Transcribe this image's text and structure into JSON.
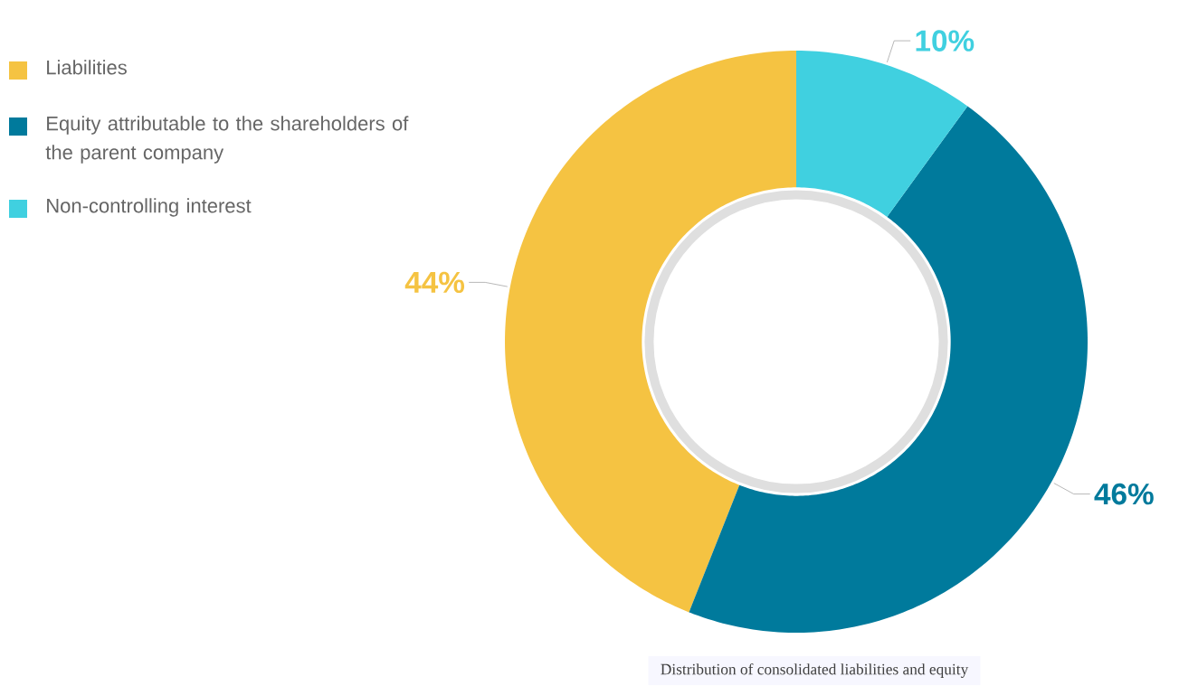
{
  "chart_data": {
    "type": "donut",
    "categories": [
      "Liabilities",
      "Equity attributable to the shareholders of the parent company",
      "Non-controlling interest"
    ],
    "values": [
      44,
      46,
      10
    ],
    "colors": [
      "#f5c342",
      "#007a9c",
      "#40d0e0"
    ],
    "value_labels": [
      "44%",
      "46%",
      "10%"
    ],
    "legend": "top left",
    "annotations": [
      "Distribution of consolidated liabilities and equity"
    ]
  }
}
